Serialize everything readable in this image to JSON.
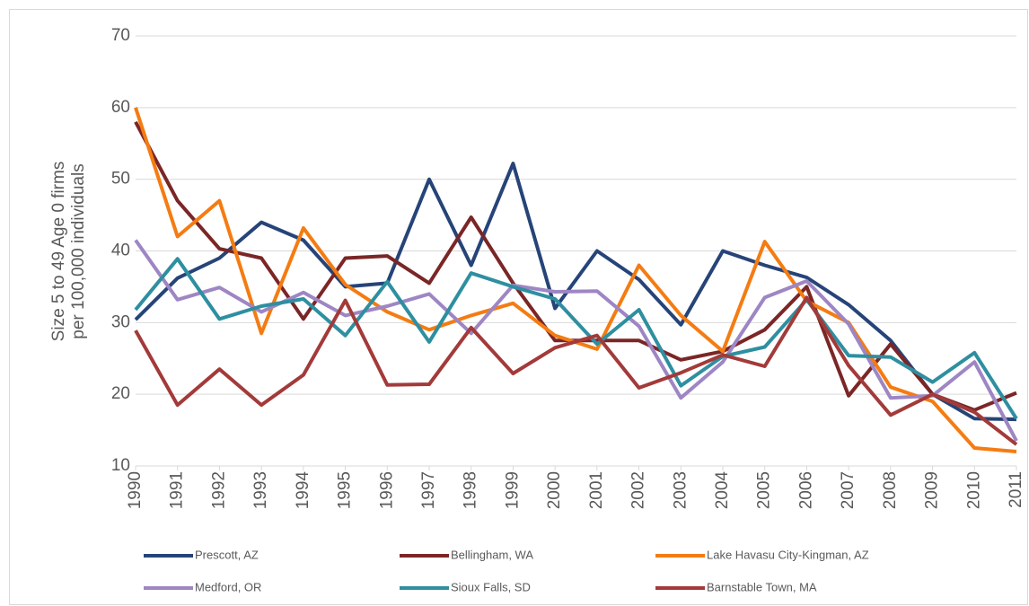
{
  "chart_data": {
    "type": "line",
    "y_label": [
      "Size 5 to 49 Age 0 firms",
      "per 100,000 individuals"
    ],
    "categories": [
      "1990",
      "1991",
      "1992",
      "1993",
      "1994",
      "1995",
      "1996",
      "1997",
      "1998",
      "1999",
      "2000",
      "2001",
      "2002",
      "2003",
      "2004",
      "2005",
      "2006",
      "2007",
      "2008",
      "2009",
      "2010",
      "2011"
    ],
    "series": [
      {
        "name": "Prescott, AZ",
        "color": "#264478",
        "values": [
          30.4,
          36.2,
          39,
          44,
          41.5,
          35,
          35.5,
          50,
          38,
          52.2,
          32,
          40,
          36,
          29.7,
          40,
          38,
          36.3,
          32.5,
          27.5,
          20,
          16.6,
          16.5
        ]
      },
      {
        "name": "Bellingham, WA",
        "color": "#7b2626",
        "values": [
          58,
          47,
          40.3,
          39,
          30.5,
          39,
          39.3,
          35.5,
          44.7,
          35.5,
          27.5,
          27.5,
          27.5,
          24.8,
          26,
          29,
          35,
          19.8,
          27,
          20,
          17.8,
          20.2
        ]
      },
      {
        "name": "Lake Havasu City-Kingman, AZ",
        "color": "#f47c12",
        "values": [
          60,
          42,
          47,
          28.5,
          43.2,
          35.3,
          31.5,
          29,
          31,
          32.7,
          28.2,
          26.3,
          38,
          31,
          26,
          41.3,
          33,
          30,
          21,
          19,
          12.5,
          12
        ]
      },
      {
        "name": "Medford, OR",
        "color": "#9e86c4",
        "values": [
          41.5,
          33.2,
          34.9,
          31.5,
          34.2,
          31,
          32.3,
          34,
          28.5,
          35.2,
          34.3,
          34.4,
          29.5,
          19.5,
          24.5,
          33.5,
          35.8,
          29.8,
          19.5,
          19.8,
          24.5,
          13.5
        ]
      },
      {
        "name": "Sioux Falls, SD",
        "color": "#2e8fa0",
        "values": [
          31.8,
          38.9,
          30.5,
          32.3,
          33.3,
          28.2,
          35.7,
          27.3,
          36.9,
          35,
          33.3,
          27,
          31.8,
          21.2,
          25.3,
          26.6,
          33.2,
          25.4,
          25.2,
          21.7,
          25.8,
          16.6
        ]
      },
      {
        "name": "Barnstable Town, MA",
        "color": "#a33a3a",
        "values": [
          28.9,
          18.5,
          23.5,
          18.5,
          22.7,
          33.1,
          21.3,
          21.4,
          29.3,
          22.9,
          26.5,
          28.2,
          20.9,
          23,
          25.5,
          23.9,
          33.5,
          24,
          17.1,
          20,
          17.5,
          13
        ]
      }
    ],
    "ylim": [
      10,
      70
    ],
    "yticks": [
      10,
      20,
      30,
      40,
      50,
      60,
      70
    ],
    "grid": true
  }
}
